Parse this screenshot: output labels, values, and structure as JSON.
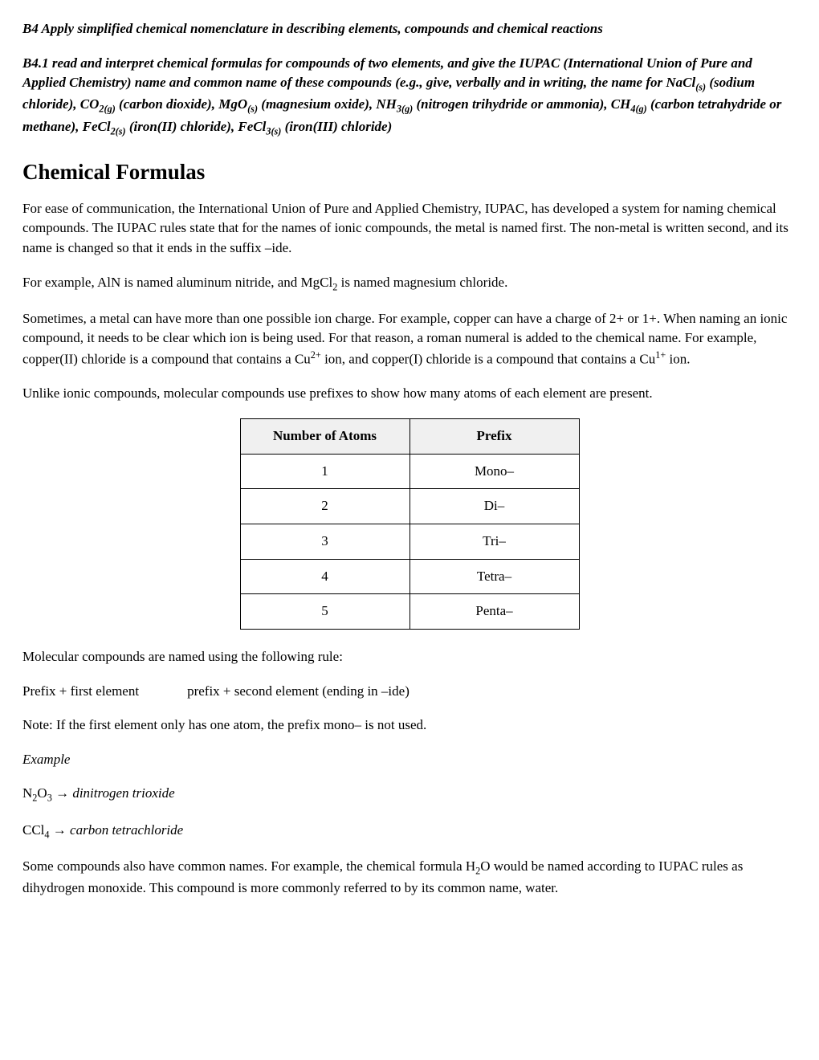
{
  "standard_b4": "B4 Apply simplified chemical nomenclature in describing elements, compounds and chemical reactions",
  "standard_b41_pre": "B4.1 read and interpret chemical formulas for compounds of two elements, and give the IUPAC (International Union of Pure and Applied Chemistry) name and common name of these compounds (e.g., give, verbally and in writing, the name for NaCl",
  "s_nacl": "(s)",
  "t_nacl": " (sodium chloride), CO",
  "s_co2": "2(g)",
  "t_co2": " (carbon dioxide), MgO",
  "s_mgo": "(s)",
  "t_mgo": " (magnesium oxide), NH",
  "s_nh3": "3(g)",
  "t_nh3": " (nitrogen trihydride or ammonia), CH",
  "s_ch4": "4(g)",
  "t_ch4": " (carbon tetrahydride or methane), FeCl",
  "s_fecl2": "2(s)",
  "t_fecl2": " (iron(II) chloride), FeCl",
  "s_fecl3": "3(s)",
  "t_fecl3": " (iron(III) chloride)",
  "heading": "Chemical Formulas",
  "p1": "For ease of communication, the International Union of Pure and Applied Chemistry, IUPAC, has developed a system for naming chemical compounds. The IUPAC rules state that for the names of ionic compounds, the metal is named first. The non-metal is written second, and its name is changed so that it ends in the suffix –ide.",
  "p2a": "For example, AlN is named aluminum nitride, and MgCl",
  "p2sub": "2",
  "p2b": " is named magnesium chloride.",
  "p3a": "Sometimes, a metal can have more than one possible ion charge. For example, copper can have a charge of 2+ or 1+. When naming an ionic compound, it needs to be clear which ion is being used. For that reason, a roman numeral is added to the chemical name. For example, copper(II) chloride is a compound that contains a Cu",
  "p3sup1": "2+",
  "p3b": " ion, and copper(I) chloride is a compound that contains a Cu",
  "p3sup2": "1+",
  "p3c": " ion.",
  "p4": "Unlike ionic compounds, molecular compounds use prefixes to show how many atoms of each element are present.",
  "table": {
    "h1": "Number of Atoms",
    "h2": "Prefix",
    "rows": [
      {
        "n": "1",
        "p": "Mono–"
      },
      {
        "n": "2",
        "p": "Di–"
      },
      {
        "n": "3",
        "p": "Tri–"
      },
      {
        "n": "4",
        "p": "Tetra–"
      },
      {
        "n": "5",
        "p": "Penta–"
      }
    ]
  },
  "p5": "Molecular compounds are named using the following rule:",
  "rule_a": "Prefix + first element",
  "rule_b": "prefix + second element (ending in –ide)",
  "p6": "Note: If the first element only has one atom, the prefix mono– is not used.",
  "example_label": "Example",
  "ex1_f1": "N",
  "ex1_s1": "2",
  "ex1_f2": "O",
  "ex1_s2": "3",
  "arrow": " → ",
  "ex1_name": "dinitrogen trioxide",
  "ex2_f1": "CCl",
  "ex2_s1": "4",
  "ex2_name": "carbon tetrachloride",
  "p7a": "Some compounds also have common names. For example, the chemical formula H",
  "p7sub": "2",
  "p7b": "O would be named according to IUPAC rules as dihydrogen monoxide. This compound is more commonly referred to by its common name, water."
}
